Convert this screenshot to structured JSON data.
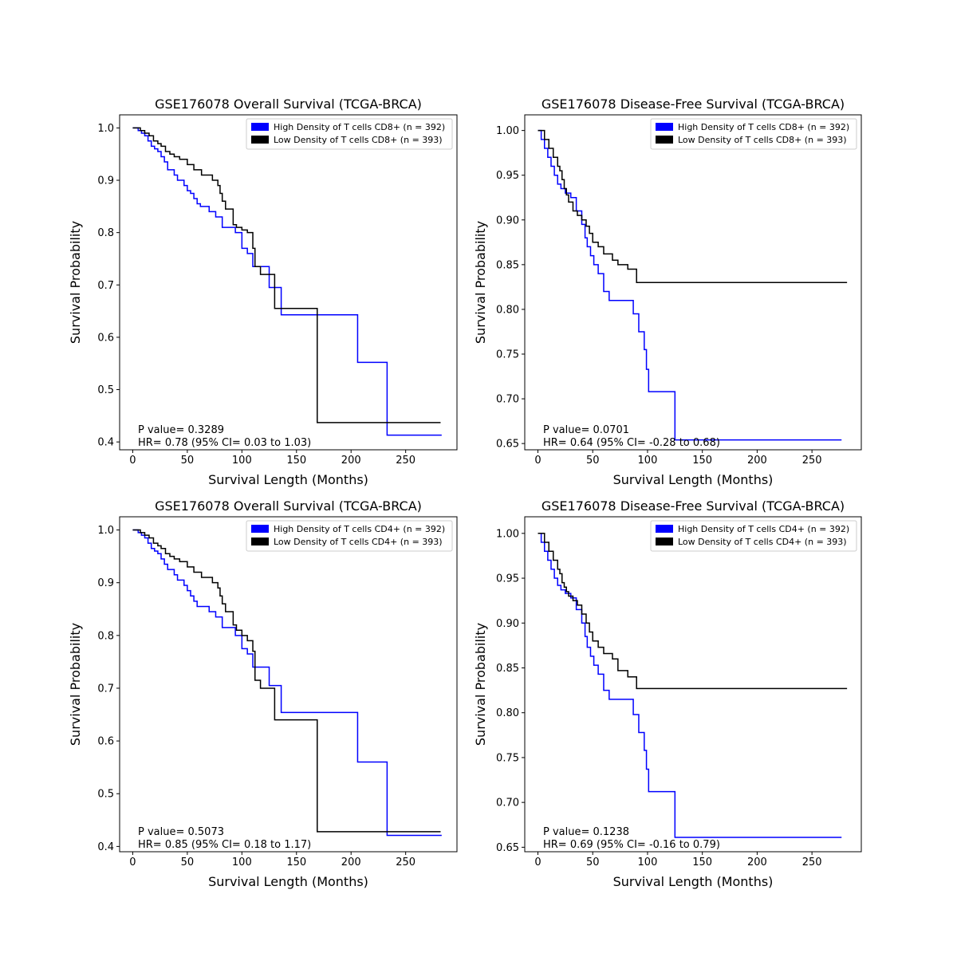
{
  "chart_data": [
    {
      "type": "line",
      "title": "GSE176078 Overall Survival (TCGA-BRCA)",
      "xlabel": "Survival Length (Months)",
      "ylabel": "Survival Probability",
      "xlim": [
        -12,
        297
      ],
      "ylim": [
        0.385,
        1.025
      ],
      "xticks": [
        0,
        50,
        100,
        150,
        200,
        250
      ],
      "yticks": [
        0.4,
        0.5,
        0.6,
        0.7,
        0.8,
        0.9,
        1.0
      ],
      "ytick_labels": [
        "0.4",
        "0.5",
        "0.6",
        "0.7",
        "0.8",
        "0.9",
        "1.0"
      ],
      "legend_position": "top-right",
      "annotations": [
        "P value= 0.3289",
        "HR= 0.78 (95% CI= 0.03 to 1.03)"
      ],
      "series": [
        {
          "name": "High Density of T cells CD8+ (n = 392)",
          "color": "#0000ff",
          "x": [
            0,
            5,
            8,
            11,
            14,
            17,
            20,
            23,
            26,
            29,
            32,
            35,
            38,
            41,
            44,
            47,
            50,
            53,
            56,
            59,
            62,
            65,
            70,
            76,
            82,
            88,
            94,
            100,
            105,
            110,
            115,
            125,
            136,
            150,
            170,
            190,
            206,
            220,
            233,
            283
          ],
          "y": [
            1.0,
            0.995,
            0.99,
            0.985,
            0.975,
            0.965,
            0.96,
            0.955,
            0.945,
            0.935,
            0.92,
            0.92,
            0.91,
            0.9,
            0.9,
            0.89,
            0.88,
            0.875,
            0.865,
            0.855,
            0.85,
            0.85,
            0.84,
            0.83,
            0.81,
            0.81,
            0.8,
            0.77,
            0.76,
            0.735,
            0.735,
            0.695,
            0.643,
            0.643,
            0.643,
            0.643,
            0.552,
            0.552,
            0.413,
            0.413
          ]
        },
        {
          "name": "Low Density of T cells CD8+ (n = 393)",
          "color": "#000000",
          "x": [
            0,
            7,
            11,
            15,
            19,
            23,
            26,
            30,
            34,
            38,
            43,
            50,
            56,
            63,
            73,
            78,
            80,
            82,
            85,
            92,
            95,
            100,
            105,
            110,
            112,
            117,
            130,
            150,
            169,
            200,
            282
          ],
          "y": [
            1.0,
            0.995,
            0.99,
            0.985,
            0.975,
            0.97,
            0.965,
            0.955,
            0.95,
            0.945,
            0.94,
            0.93,
            0.92,
            0.91,
            0.9,
            0.89,
            0.875,
            0.86,
            0.845,
            0.815,
            0.81,
            0.805,
            0.8,
            0.77,
            0.735,
            0.72,
            0.655,
            0.655,
            0.437,
            0.437,
            0.437
          ]
        }
      ]
    },
    {
      "type": "line",
      "title": "GSE176078 Disease-Free Survival (TCGA-BRCA)",
      "xlabel": "Survival Length (Months)",
      "ylabel": "Survival Probability",
      "xlim": [
        -12,
        295
      ],
      "ylim": [
        0.643,
        1.0175
      ],
      "xticks": [
        0,
        50,
        100,
        150,
        200,
        250
      ],
      "yticks": [
        0.65,
        0.7,
        0.75,
        0.8,
        0.85,
        0.9,
        0.95,
        1.0
      ],
      "ytick_labels": [
        "0.65",
        "0.70",
        "0.75",
        "0.80",
        "0.85",
        "0.90",
        "0.95",
        "1.00"
      ],
      "legend_position": "top-right",
      "annotations": [
        "P value= 0.0701",
        "HR= 0.64 (95% CI= -0.28 to 0.68)"
      ],
      "series": [
        {
          "name": "High Density of T cells CD8+ (n = 392)",
          "color": "#0000ff",
          "x": [
            0,
            3,
            6,
            9,
            12,
            15,
            18,
            21,
            25,
            30,
            35,
            40,
            43,
            45,
            48,
            51,
            55,
            60,
            65,
            80,
            87,
            92,
            97,
            99,
            101,
            110,
            125,
            150,
            200,
            277
          ],
          "y": [
            1.0,
            0.99,
            0.98,
            0.97,
            0.96,
            0.95,
            0.94,
            0.935,
            0.93,
            0.925,
            0.91,
            0.895,
            0.88,
            0.87,
            0.86,
            0.85,
            0.84,
            0.82,
            0.81,
            0.81,
            0.795,
            0.775,
            0.755,
            0.733,
            0.708,
            0.708,
            0.654,
            0.654,
            0.654,
            0.654
          ]
        },
        {
          "name": "Low Density of T cells CD8+ (n = 393)",
          "color": "#000000",
          "x": [
            0,
            6,
            10,
            14,
            18,
            20,
            22,
            24,
            26,
            28,
            32,
            36,
            40,
            44,
            47,
            50,
            55,
            60,
            68,
            73,
            82,
            90,
            150,
            200,
            282
          ],
          "y": [
            1.0,
            0.99,
            0.98,
            0.97,
            0.96,
            0.955,
            0.945,
            0.935,
            0.928,
            0.92,
            0.91,
            0.905,
            0.9,
            0.893,
            0.885,
            0.875,
            0.87,
            0.862,
            0.855,
            0.85,
            0.845,
            0.83,
            0.83,
            0.83,
            0.83
          ]
        }
      ]
    },
    {
      "type": "line",
      "title": "GSE176078 Overall Survival (TCGA-BRCA)",
      "xlabel": "Survival Length (Months)",
      "ylabel": "Survival Probability",
      "xlim": [
        -12,
        297
      ],
      "ylim": [
        0.39,
        1.025
      ],
      "xticks": [
        0,
        50,
        100,
        150,
        200,
        250
      ],
      "yticks": [
        0.4,
        0.5,
        0.6,
        0.7,
        0.8,
        0.9,
        1.0
      ],
      "ytick_labels": [
        "0.4",
        "0.5",
        "0.6",
        "0.7",
        "0.8",
        "0.9",
        "1.0"
      ],
      "legend_position": "top-right",
      "annotations": [
        "P value= 0.5073",
        "HR= 0.85 (95% CI= 0.18 to 1.17)"
      ],
      "series": [
        {
          "name": "High Density of T cells CD4+ (n = 392)",
          "color": "#0000ff",
          "x": [
            0,
            5,
            8,
            11,
            14,
            17,
            20,
            23,
            26,
            29,
            32,
            35,
            38,
            41,
            44,
            47,
            50,
            53,
            56,
            59,
            62,
            65,
            70,
            76,
            82,
            88,
            94,
            100,
            105,
            110,
            115,
            125,
            136,
            150,
            170,
            190,
            206,
            220,
            233,
            283
          ],
          "y": [
            1.0,
            0.995,
            0.99,
            0.985,
            0.975,
            0.965,
            0.96,
            0.955,
            0.945,
            0.935,
            0.925,
            0.925,
            0.915,
            0.905,
            0.905,
            0.895,
            0.885,
            0.875,
            0.865,
            0.855,
            0.855,
            0.855,
            0.845,
            0.835,
            0.815,
            0.815,
            0.8,
            0.775,
            0.765,
            0.74,
            0.74,
            0.705,
            0.654,
            0.654,
            0.654,
            0.654,
            0.56,
            0.56,
            0.421,
            0.421
          ]
        },
        {
          "name": "Low Density of T cells CD4+ (n = 393)",
          "color": "#000000",
          "x": [
            0,
            7,
            11,
            15,
            19,
            23,
            26,
            30,
            34,
            38,
            43,
            50,
            56,
            63,
            73,
            78,
            80,
            82,
            85,
            92,
            95,
            100,
            105,
            110,
            112,
            117,
            130,
            150,
            169,
            200,
            282
          ],
          "y": [
            1.0,
            0.995,
            0.99,
            0.985,
            0.975,
            0.97,
            0.965,
            0.955,
            0.95,
            0.945,
            0.94,
            0.93,
            0.92,
            0.91,
            0.9,
            0.89,
            0.875,
            0.86,
            0.845,
            0.82,
            0.81,
            0.8,
            0.79,
            0.77,
            0.715,
            0.7,
            0.64,
            0.64,
            0.428,
            0.428,
            0.428
          ]
        }
      ]
    },
    {
      "type": "line",
      "title": "GSE176078 Disease-Free Survival (TCGA-BRCA)",
      "xlabel": "Survival Length (Months)",
      "ylabel": "Survival Probability",
      "xlim": [
        -12,
        295
      ],
      "ylim": [
        0.645,
        1.0185
      ],
      "xticks": [
        0,
        50,
        100,
        150,
        200,
        250
      ],
      "yticks": [
        0.65,
        0.7,
        0.75,
        0.8,
        0.85,
        0.9,
        0.95,
        1.0
      ],
      "ytick_labels": [
        "0.65",
        "0.70",
        "0.75",
        "0.80",
        "0.85",
        "0.90",
        "0.95",
        "1.00"
      ],
      "legend_position": "top-right",
      "annotations": [
        "P value= 0.1238",
        "HR= 0.69 (95% CI= -0.16 to 0.79)"
      ],
      "series": [
        {
          "name": "High Density of T cells CD4+ (n = 392)",
          "color": "#0000ff",
          "x": [
            0,
            3,
            6,
            9,
            12,
            15,
            18,
            21,
            25,
            30,
            35,
            40,
            43,
            45,
            48,
            51,
            55,
            60,
            65,
            80,
            87,
            92,
            97,
            99,
            101,
            110,
            125,
            150,
            200,
            277
          ],
          "y": [
            1.0,
            0.99,
            0.98,
            0.97,
            0.96,
            0.95,
            0.942,
            0.937,
            0.933,
            0.928,
            0.915,
            0.9,
            0.885,
            0.873,
            0.863,
            0.853,
            0.843,
            0.825,
            0.815,
            0.815,
            0.798,
            0.778,
            0.758,
            0.737,
            0.712,
            0.712,
            0.661,
            0.661,
            0.661,
            0.661
          ]
        },
        {
          "name": "Low Density of T cells CD4+ (n = 393)",
          "color": "#000000",
          "x": [
            0,
            6,
            10,
            14,
            18,
            20,
            22,
            24,
            26,
            28,
            32,
            36,
            40,
            44,
            47,
            50,
            55,
            60,
            68,
            73,
            82,
            90,
            150,
            200,
            282
          ],
          "y": [
            1.0,
            0.99,
            0.98,
            0.97,
            0.96,
            0.955,
            0.945,
            0.94,
            0.935,
            0.93,
            0.925,
            0.92,
            0.91,
            0.9,
            0.89,
            0.88,
            0.873,
            0.866,
            0.86,
            0.847,
            0.84,
            0.827,
            0.827,
            0.827,
            0.827
          ]
        }
      ]
    }
  ]
}
